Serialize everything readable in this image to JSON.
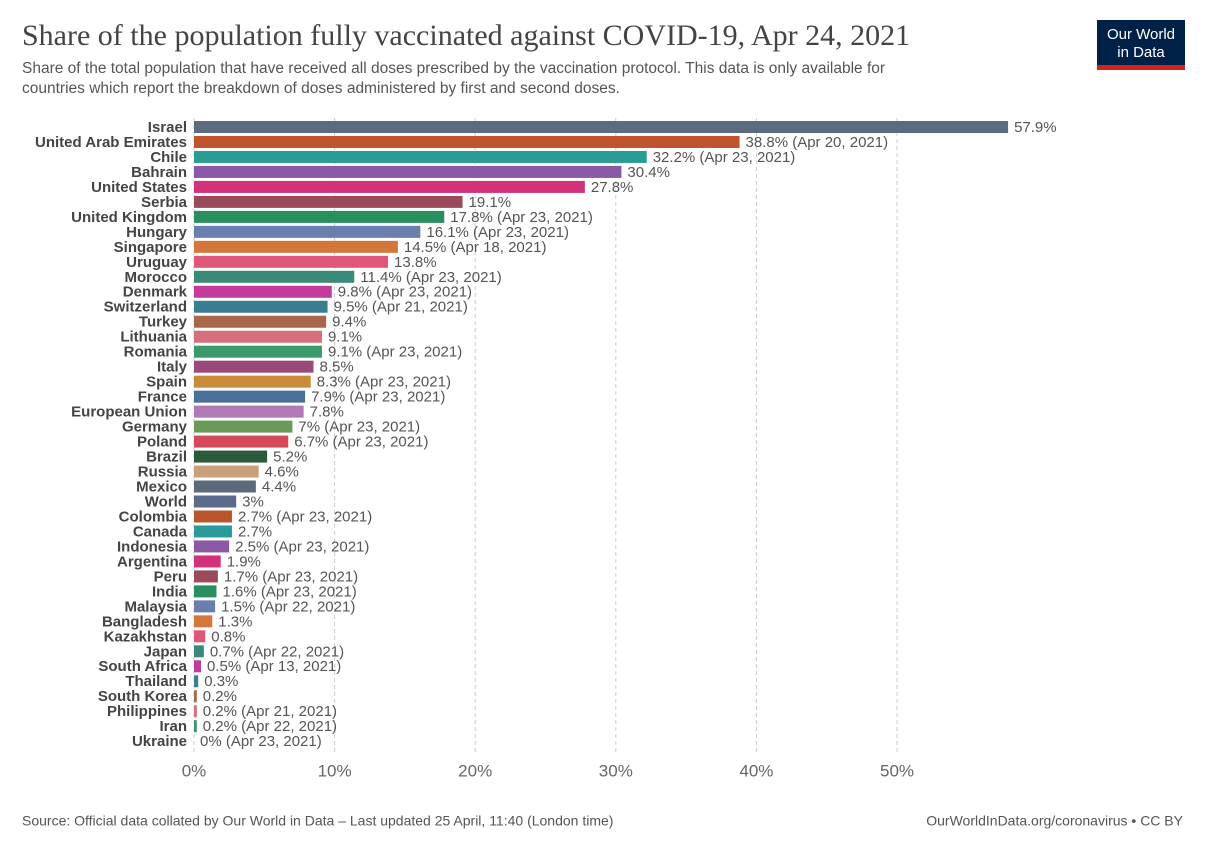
{
  "chart_data": {
    "type": "bar",
    "orientation": "horizontal",
    "title": "Share of the population fully vaccinated against COVID-19, Apr 24, 2021",
    "subtitle": [
      "Share of the total population that have received all doses prescribed by the vaccination protocol. This data is only available for",
      "countries which report the breakdown of doses administered by first and second doses."
    ],
    "logo": [
      "Our World",
      "in Data"
    ],
    "categories": [
      "Israel",
      "United Arab Emirates",
      "Chile",
      "Bahrain",
      "United States",
      "Serbia",
      "United Kingdom",
      "Hungary",
      "Singapore",
      "Uruguay",
      "Morocco",
      "Denmark",
      "Switzerland",
      "Turkey",
      "Lithuania",
      "Romania",
      "Italy",
      "Spain",
      "France",
      "European Union",
      "Germany",
      "Poland",
      "Brazil",
      "Russia",
      "Mexico",
      "World",
      "Colombia",
      "Canada",
      "Indonesia",
      "Argentina",
      "Peru",
      "India",
      "Malaysia",
      "Bangladesh",
      "Kazakhstan",
      "Japan",
      "South Africa",
      "Thailand",
      "South Korea",
      "Philippines",
      "Iran",
      "Ukraine"
    ],
    "values": [
      57.9,
      38.8,
      32.2,
      30.4,
      27.8,
      19.1,
      17.8,
      16.1,
      14.5,
      13.8,
      11.4,
      9.8,
      9.5,
      9.4,
      9.1,
      9.1,
      8.5,
      8.3,
      7.9,
      7.8,
      7,
      6.7,
      5.2,
      4.6,
      4.4,
      3,
      2.7,
      2.7,
      2.5,
      1.9,
      1.7,
      1.6,
      1.5,
      1.3,
      0.8,
      0.7,
      0.5,
      0.3,
      0.2,
      0.2,
      0.2,
      0
    ],
    "value_labels": [
      "57.9%",
      "38.8% (Apr 20, 2021)",
      "32.2% (Apr 23, 2021)",
      "30.4%",
      "27.8%",
      "19.1%",
      "17.8% (Apr 23, 2021)",
      "16.1% (Apr 23, 2021)",
      "14.5% (Apr 18, 2021)",
      "13.8%",
      "11.4% (Apr 23, 2021)",
      "9.8% (Apr 23, 2021)",
      "9.5% (Apr 21, 2021)",
      "9.4%",
      "9.1%",
      "9.1% (Apr 23, 2021)",
      "8.5%",
      "8.3% (Apr 23, 2021)",
      "7.9% (Apr 23, 2021)",
      "7.8%",
      "7% (Apr 23, 2021)",
      "6.7% (Apr 23, 2021)",
      "5.2%",
      "4.6%",
      "4.4%",
      "3%",
      "2.7% (Apr 23, 2021)",
      "2.7%",
      "2.5% (Apr 23, 2021)",
      "1.9%",
      "1.7% (Apr 23, 2021)",
      "1.6% (Apr 23, 2021)",
      "1.5% (Apr 22, 2021)",
      "1.3%",
      "0.8%",
      "0.7% (Apr 22, 2021)",
      "0.5% (Apr 13, 2021)",
      "0.3%",
      "0.2%",
      "0.2% (Apr 21, 2021)",
      "0.2% (Apr 22, 2021)",
      "0% (Apr 23, 2021)"
    ],
    "colors": [
      "#5b6b82",
      "#c0532c",
      "#2a9c96",
      "#8a5aa8",
      "#d4317d",
      "#9a4a5a",
      "#2a8f5f",
      "#6a7fae",
      "#d4773a",
      "#e0577a",
      "#3a8a7a",
      "#c23a9a",
      "#3a7f8f",
      "#a8664a",
      "#d4707a",
      "#3a9a6a",
      "#9a4a7a",
      "#c98a3a",
      "#4a6f9a",
      "#b07ab8",
      "#6a9a5a",
      "#d44a5a",
      "#2a5a3a",
      "#c8a07a",
      "#5a6a7a",
      "#5a6a8a",
      "#b8552a",
      "#2a9a9a",
      "#8a5aa8",
      "#d4317d",
      "#9a4a5a",
      "#2a8f5f",
      "#6a7fae",
      "#d4773a",
      "#e0577a",
      "#3a8a7a",
      "#c23a9a",
      "#3a7f8f",
      "#a8664a",
      "#d4707a",
      "#3a9a6a",
      "#9a4a7a"
    ],
    "xlim": [
      0,
      60
    ],
    "xticks": [
      {
        "value": 0,
        "label": "0%"
      },
      {
        "value": 10,
        "label": "10%"
      },
      {
        "value": 20,
        "label": "20%"
      },
      {
        "value": 30,
        "label": "30%"
      },
      {
        "value": 40,
        "label": "40%"
      },
      {
        "value": 50,
        "label": "50%"
      }
    ],
    "grid": true,
    "source": "Source: Official data collated by Our World in Data – Last updated 25 April, 11:40 (London time)",
    "credit": "OurWorldInData.org/coronavirus • CC BY"
  }
}
